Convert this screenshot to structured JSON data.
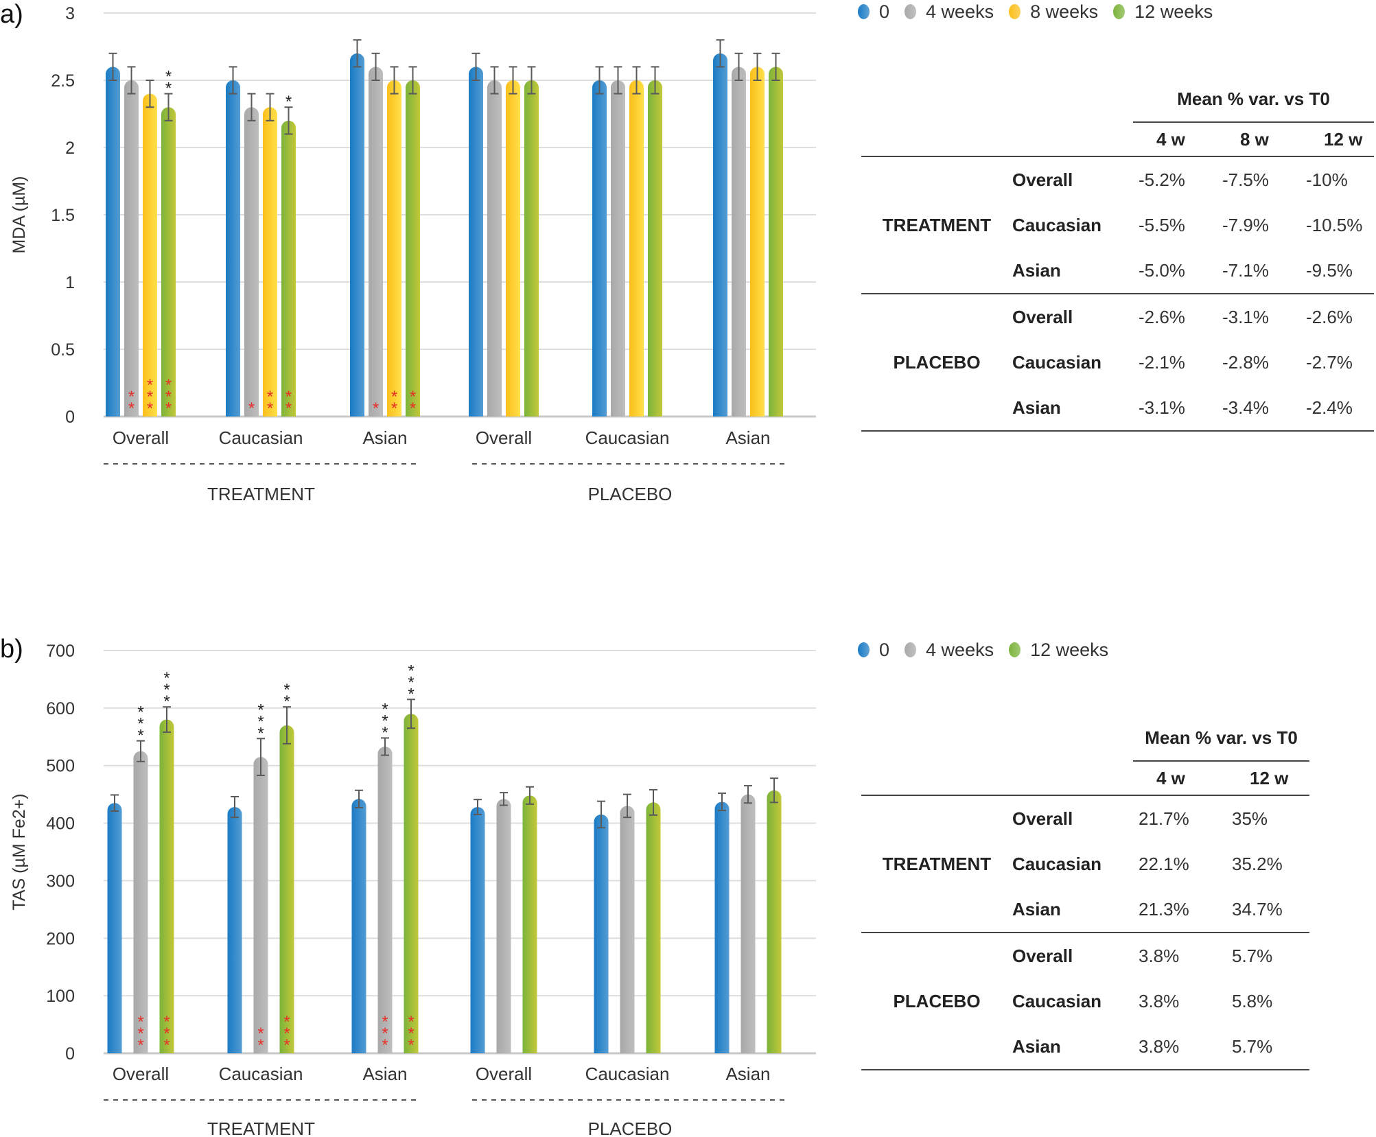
{
  "panels": [
    {
      "label": "a)",
      "legend": [
        {
          "label": "0",
          "color": "#1a7bc4"
        },
        {
          "label": "4 weeks",
          "color": "#a8a8a8"
        },
        {
          "label": "8 weeks",
          "color": "#fbbf1a"
        },
        {
          "label": "12 weeks",
          "color": "#7bb33a"
        }
      ],
      "table": {
        "header": "Mean % var. vs T0",
        "columns": [
          "4 w",
          "8 w",
          "12 w"
        ],
        "groups": [
          {
            "name": "TREATMENT",
            "rows": [
              {
                "label": "Overall",
                "values": [
                  "-5.2%",
                  "-7.5%",
                  "-10%"
                ]
              },
              {
                "label": "Caucasian",
                "values": [
                  "-5.5%",
                  "-7.9%",
                  "-10.5%"
                ]
              },
              {
                "label": "Asian",
                "values": [
                  "-5.0%",
                  "-7.1%",
                  "-9.5%"
                ]
              }
            ]
          },
          {
            "name": "PLACEBO",
            "rows": [
              {
                "label": "Overall",
                "values": [
                  "-2.6%",
                  "-3.1%",
                  "-2.6%"
                ]
              },
              {
                "label": "Caucasian",
                "values": [
                  "-2.1%",
                  "-2.8%",
                  "-2.7%"
                ]
              },
              {
                "label": "Asian",
                "values": [
                  "-3.1%",
                  "-3.4%",
                  "-2.4%"
                ]
              }
            ]
          }
        ]
      }
    },
    {
      "label": "b)",
      "legend": [
        {
          "label": "0",
          "color": "#1a7bc4"
        },
        {
          "label": "4 weeks",
          "color": "#a8a8a8"
        },
        {
          "label": "12 weeks",
          "color": "#7bb33a"
        }
      ],
      "table": {
        "header": "Mean % var. vs T0",
        "columns": [
          "4 w",
          "12 w"
        ],
        "groups": [
          {
            "name": "TREATMENT",
            "rows": [
              {
                "label": "Overall",
                "values": [
                  "21.7%",
                  "35%"
                ]
              },
              {
                "label": "Caucasian",
                "values": [
                  "22.1%",
                  "35.2%"
                ]
              },
              {
                "label": "Asian",
                "values": [
                  "21.3%",
                  "34.7%"
                ]
              }
            ]
          },
          {
            "name": "PLACEBO",
            "rows": [
              {
                "label": "Overall",
                "values": [
                  "3.8%",
                  "5.7%"
                ]
              },
              {
                "label": "Caucasian",
                "values": [
                  "3.8%",
                  "5.8%"
                ]
              },
              {
                "label": "Asian",
                "values": [
                  "3.8%",
                  "5.7%"
                ]
              }
            ]
          }
        ]
      }
    }
  ],
  "chart_data": [
    {
      "type": "bar",
      "title": "",
      "xlabel": "",
      "ylabel": "MDA (µM)",
      "ylim": [
        0,
        3
      ],
      "yticks": [
        "0",
        "0.5",
        "1",
        "1.5",
        "2",
        "2.5",
        "3"
      ],
      "ytick_values": [
        0,
        0.5,
        1,
        1.5,
        2,
        2.5,
        3
      ],
      "grid": true,
      "legend_position": "top-right",
      "categories": [
        "Overall",
        "Caucasian",
        "Asian",
        "Overall",
        "Caucasian",
        "Asian"
      ],
      "groups": [
        {
          "name": "TREATMENT",
          "categories": [
            0,
            1,
            2
          ]
        },
        {
          "name": "PLACEBO",
          "categories": [
            3,
            4,
            5
          ]
        }
      ],
      "series": [
        {
          "name": "0",
          "color": "#1a7bc4",
          "values": [
            2.6,
            2.5,
            2.7,
            2.6,
            2.5,
            2.7
          ],
          "errors": [
            0.1,
            0.1,
            0.1,
            0.1,
            0.1,
            0.1
          ]
        },
        {
          "name": "4 weeks",
          "color": "#a8a8a8",
          "values": [
            2.5,
            2.3,
            2.6,
            2.5,
            2.5,
            2.6
          ],
          "errors": [
            0.1,
            0.1,
            0.1,
            0.1,
            0.1,
            0.1
          ]
        },
        {
          "name": "8 weeks",
          "color": "#fbbf1a",
          "values": [
            2.4,
            2.3,
            2.5,
            2.5,
            2.5,
            2.6
          ],
          "errors": [
            0.1,
            0.1,
            0.1,
            0.1,
            0.1,
            0.1
          ]
        },
        {
          "name": "12 weeks",
          "color": "#7bb33a",
          "values": [
            2.3,
            2.2,
            2.5,
            2.5,
            2.5,
            2.6
          ],
          "errors": [
            0.1,
            0.1,
            0.1,
            0.1,
            0.1,
            0.1
          ]
        }
      ],
      "annotations_top": [
        {
          "category": 0,
          "series": 3,
          "text": "**"
        },
        {
          "category": 1,
          "series": 3,
          "text": "*"
        }
      ],
      "annotations_base": [
        {
          "category": 0,
          "series": 1,
          "text": "**"
        },
        {
          "category": 0,
          "series": 2,
          "text": "***"
        },
        {
          "category": 0,
          "series": 3,
          "text": "***"
        },
        {
          "category": 1,
          "series": 1,
          "text": "*"
        },
        {
          "category": 1,
          "series": 2,
          "text": "**"
        },
        {
          "category": 1,
          "series": 3,
          "text": "**"
        },
        {
          "category": 2,
          "series": 1,
          "text": "*"
        },
        {
          "category": 2,
          "series": 2,
          "text": "**"
        },
        {
          "category": 2,
          "series": 3,
          "text": "**"
        }
      ]
    },
    {
      "type": "bar",
      "title": "",
      "xlabel": "",
      "ylabel": "TAS (µM Fe2+)",
      "ylim": [
        0,
        700
      ],
      "yticks": [
        "0",
        "100",
        "200",
        "300",
        "400",
        "500",
        "600",
        "700"
      ],
      "ytick_values": [
        0,
        100,
        200,
        300,
        400,
        500,
        600,
        700
      ],
      "grid": true,
      "legend_position": "top-right",
      "categories": [
        "Overall",
        "Caucasian",
        "Asian",
        "Overall",
        "Caucasian",
        "Asian"
      ],
      "groups": [
        {
          "name": "TREATMENT",
          "categories": [
            0,
            1,
            2
          ]
        },
        {
          "name": "PLACEBO",
          "categories": [
            3,
            4,
            5
          ]
        }
      ],
      "series": [
        {
          "name": "0",
          "color": "#1a7bc4",
          "values": [
            435,
            428,
            442,
            428,
            415,
            437
          ],
          "errors": [
            14,
            18,
            15,
            13,
            23,
            15
          ]
        },
        {
          "name": "4 weeks",
          "color": "#a8a8a8",
          "values": [
            525,
            515,
            533,
            442,
            430,
            450
          ],
          "errors": [
            18,
            32,
            15,
            11,
            20,
            15
          ]
        },
        {
          "name": "12 weeks",
          "color": "#7bb33a",
          "values": [
            580,
            570,
            590,
            448,
            436,
            457
          ],
          "errors": [
            22,
            32,
            25,
            15,
            22,
            21
          ]
        }
      ],
      "annotations_top": [
        {
          "category": 0,
          "series": 1,
          "text": "***"
        },
        {
          "category": 0,
          "series": 2,
          "text": "***"
        },
        {
          "category": 1,
          "series": 1,
          "text": "***"
        },
        {
          "category": 1,
          "series": 2,
          "text": "**"
        },
        {
          "category": 2,
          "series": 1,
          "text": "***"
        },
        {
          "category": 2,
          "series": 2,
          "text": "***"
        }
      ],
      "annotations_base": [
        {
          "category": 0,
          "series": 1,
          "text": "***"
        },
        {
          "category": 0,
          "series": 2,
          "text": "***"
        },
        {
          "category": 1,
          "series": 1,
          "text": "**"
        },
        {
          "category": 1,
          "series": 2,
          "text": "***"
        },
        {
          "category": 2,
          "series": 1,
          "text": "***"
        },
        {
          "category": 2,
          "series": 2,
          "text": "***"
        }
      ]
    }
  ]
}
